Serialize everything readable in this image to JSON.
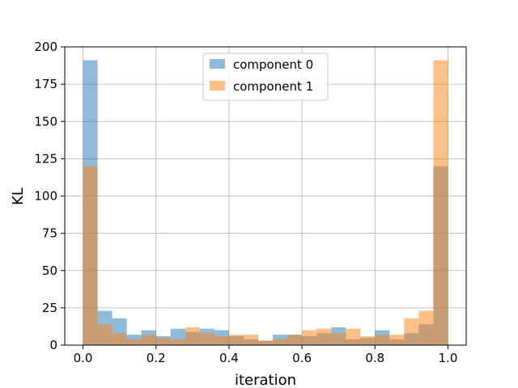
{
  "chart_data": {
    "type": "bar",
    "subtype": "overlapping-histogram",
    "xlabel": "iteration",
    "ylabel": "KL",
    "xlim": [
      -0.05,
      1.05
    ],
    "ylim": [
      0,
      200
    ],
    "xticks": [
      "0.0",
      "0.2",
      "0.4",
      "0.6",
      "0.8",
      "1.0"
    ],
    "yticks": [
      "0",
      "25",
      "50",
      "75",
      "100",
      "125",
      "150",
      "175",
      "200"
    ],
    "grid": true,
    "legend_position": "top-center",
    "bin_edges": [
      0.0,
      0.04,
      0.08,
      0.12,
      0.16,
      0.2,
      0.24,
      0.28,
      0.32,
      0.36,
      0.4,
      0.44,
      0.48,
      0.52,
      0.56,
      0.6,
      0.64,
      0.68,
      0.72,
      0.76,
      0.8,
      0.84,
      0.88,
      0.92,
      0.96,
      1.0
    ],
    "series": [
      {
        "name": "component 0",
        "color": "#1f77b4",
        "values": [
          191,
          23,
          18,
          7,
          10,
          6,
          11,
          9,
          11,
          10,
          6,
          4,
          3,
          7,
          7,
          6,
          8,
          12,
          4,
          5,
          10,
          4,
          8,
          14,
          120
        ]
      },
      {
        "name": "component 1",
        "color": "#ff7f0e",
        "values": [
          120,
          14,
          8,
          4,
          7,
          5,
          4,
          12,
          8,
          6,
          7,
          7,
          3,
          4,
          7,
          10,
          11,
          8,
          11,
          6,
          7,
          7,
          18,
          23,
          191
        ]
      }
    ]
  }
}
